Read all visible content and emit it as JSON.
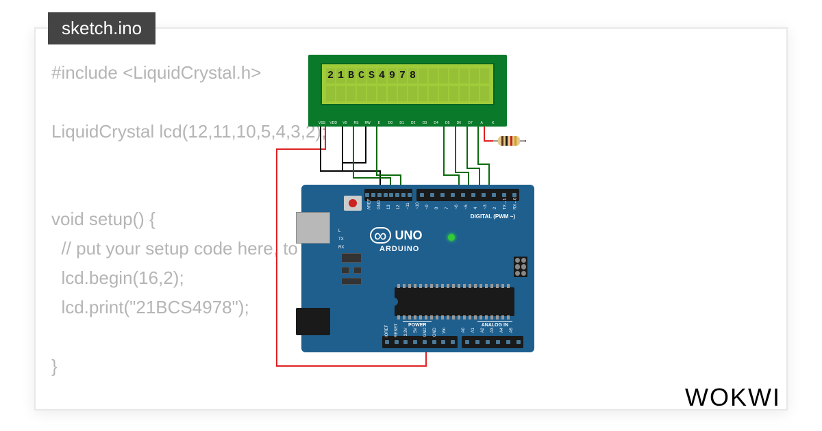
{
  "tab": {
    "filename": "sketch.ino"
  },
  "code": {
    "line1": "#include <LiquidCrystal.h>",
    "line3": "LiquidCrystal lcd(12,11,10,5,4,3,2);",
    "line6": "void setup() {",
    "line7": "  // put your setup code here, to run once:",
    "line8": "  lcd.begin(16,2);",
    "line9": "  lcd.print(\"21BCS4978\");",
    "line11": "}"
  },
  "lcd": {
    "display_text": "21BCS4978",
    "cols": 16,
    "rows": 2,
    "pin_labels": [
      "VSS",
      "VDD",
      "V0",
      "RS",
      "RW",
      "E",
      "D0",
      "D1",
      "D2",
      "D3",
      "D4",
      "D5",
      "D6",
      "D7",
      "A",
      "K"
    ],
    "bg_color": "#0a7a2a",
    "screen_color": "#a0cc3a"
  },
  "arduino": {
    "model": "UNO",
    "brand": "ARDUINO",
    "board_color": "#1e5f8e",
    "digital_label": "DIGITAL (PWM ~)",
    "power_label": "POWER",
    "analog_label": "ANALOG IN",
    "top_pins": [
      "AREF",
      "GND",
      "13",
      "12",
      "~11",
      "~10",
      "~9",
      "8",
      "7",
      "~6",
      "~5",
      "4",
      "~3",
      "2",
      "TX→1",
      "RX←0"
    ],
    "bottom_pins": [
      "IOREF",
      "RESET",
      "3.3V",
      "5V",
      "GND",
      "GND",
      "Vin",
      "",
      "A0",
      "A1",
      "A2",
      "A3",
      "A4",
      "A5"
    ],
    "tx_label": "TX",
    "rx_label": "RX",
    "l_label": "L",
    "on_label": "ON"
  },
  "resistor": {
    "bands": [
      "#5a3818",
      "#1a1a1a",
      "#c02020",
      "#c9a227"
    ]
  },
  "wires": {
    "black": "#000000",
    "red": "#e02020",
    "green": "#0a6a0a"
  },
  "brand": "WOKWI"
}
